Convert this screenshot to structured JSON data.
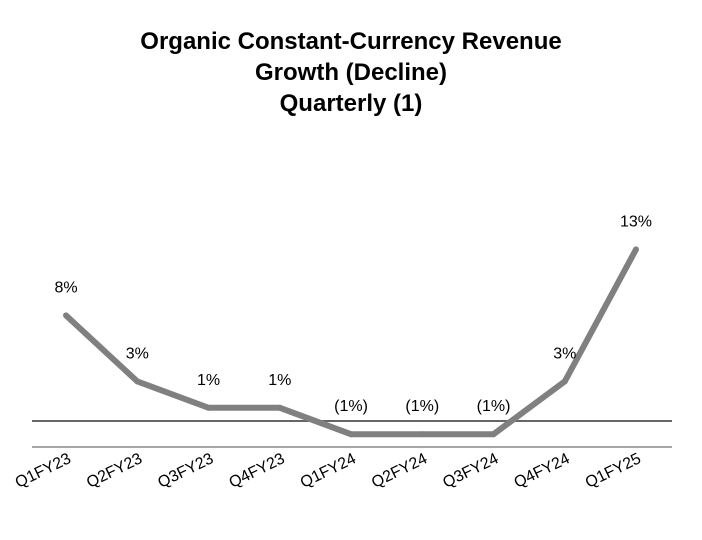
{
  "chart_data": {
    "type": "line",
    "title_lines": [
      "Organic Constant-Currency Revenue",
      "Growth (Decline)",
      "Quarterly (1)"
    ],
    "categories": [
      "Q1FY23",
      "Q2FY23",
      "Q3FY23",
      "Q4FY23",
      "Q1FY24",
      "Q2FY24",
      "Q3FY24",
      "Q4FY24",
      "Q1FY25"
    ],
    "series": [
      {
        "name": "Organic Constant-Currency Revenue Growth",
        "values": [
          8,
          3,
          1,
          1,
          -1,
          -1,
          -1,
          3,
          13
        ],
        "data_labels": [
          "8%",
          "3%",
          "1%",
          "1%",
          "(1%)",
          "(1%)",
          "(1%)",
          "3%",
          "13%"
        ],
        "color": "#808080"
      }
    ],
    "xlabel": "",
    "ylabel": "",
    "ylim": [
      -2,
      14
    ],
    "grid": false,
    "legend": "none",
    "zero_line_color": "#666666",
    "axis_line_color": "#a6a6a6"
  }
}
